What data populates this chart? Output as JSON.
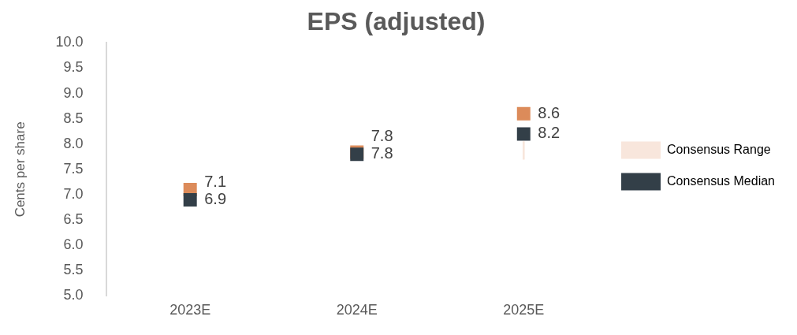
{
  "chart_data": {
    "type": "bar",
    "title": "EPS (adjusted)",
    "ylabel": "Cents per share",
    "categories": [
      "2023E",
      "2024E",
      "2025E"
    ],
    "series": [
      {
        "name": "Consensus Range",
        "color": "#f8e6dc",
        "base": [
          null,
          null,
          7.7
        ],
        "values": [
          null,
          null,
          0.35
        ]
      },
      {
        "name": "Consensus Median",
        "type": "scatter",
        "x": [
          "2023E",
          "2024E",
          "2025E"
        ],
        "color": "#333f48",
        "values": [
          6.9,
          7.8,
          8.2
        ],
        "value_labels": [
          "6.9",
          "7.8",
          "8.2"
        ]
      },
      {
        "type": "scatter",
        "x": [
          "2023E",
          "2024E",
          "2025E"
        ],
        "color": "#dc8b5a",
        "values": [
          7.1,
          7.84,
          8.6
        ],
        "value_labels": [
          "7.1",
          "7.8",
          "8.6"
        ]
      }
    ],
    "ylim": [
      5.0,
      10.0
    ],
    "yticks": [
      {
        "value": 5,
        "label": "5.0"
      },
      {
        "value": 5.5,
        "label": "5.5"
      },
      {
        "value": 6,
        "label": "6.0"
      },
      {
        "value": 6.5,
        "label": "6.5"
      },
      {
        "value": 7,
        "label": "7.0"
      },
      {
        "value": 7.5,
        "label": "7.5"
      },
      {
        "value": 8,
        "label": "8.0"
      },
      {
        "value": 8.5,
        "label": "8.5"
      },
      {
        "value": 9,
        "label": "9.0"
      },
      {
        "value": 9.5,
        "label": "9.5"
      },
      {
        "value": 10,
        "label": "10.0"
      }
    ],
    "marker": "square",
    "grid": false,
    "legend": "right"
  }
}
